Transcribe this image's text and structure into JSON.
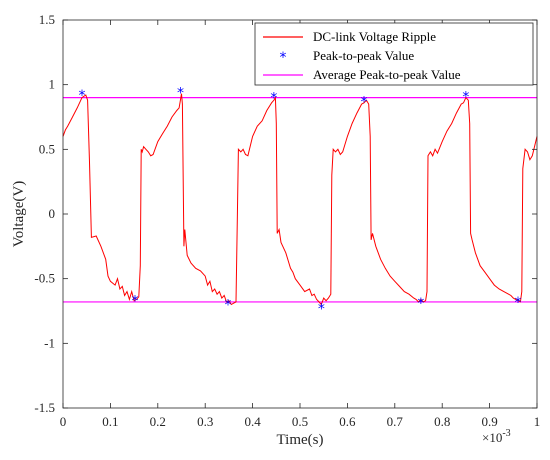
{
  "chart_data": {
    "type": "line",
    "xlabel": "Time(s)",
    "ylabel": "Voltage(V)",
    "x_multiplier_label": "×10",
    "x_multiplier_exp": "-3",
    "xlim": [
      0,
      1
    ],
    "ylim": [
      -1.5,
      1.5
    ],
    "xticks": [
      "0",
      "0.1",
      "0.2",
      "0.3",
      "0.4",
      "0.5",
      "0.6",
      "0.7",
      "0.8",
      "0.9",
      "1"
    ],
    "yticks": [
      "-1.5",
      "-1",
      "-0.5",
      "0",
      "0.5",
      "1",
      "1.5"
    ],
    "grid": false,
    "legend_position": "top-right",
    "series": [
      {
        "name": "DC-link Voltage Ripple",
        "color": "#ff0000",
        "kind": "line",
        "x": [
          0.0,
          0.005,
          0.01,
          0.02,
          0.03,
          0.04,
          0.048,
          0.052,
          0.056,
          0.06,
          0.07,
          0.08,
          0.09,
          0.095,
          0.1,
          0.11,
          0.115,
          0.12,
          0.125,
          0.13,
          0.135,
          0.14,
          0.145,
          0.15,
          0.155,
          0.16,
          0.163,
          0.165,
          0.167,
          0.17,
          0.175,
          0.18,
          0.185,
          0.19,
          0.2,
          0.21,
          0.22,
          0.23,
          0.24,
          0.245,
          0.25,
          0.252,
          0.255,
          0.257,
          0.262,
          0.27,
          0.28,
          0.29,
          0.3,
          0.305,
          0.31,
          0.315,
          0.32,
          0.325,
          0.33,
          0.335,
          0.34,
          0.345,
          0.35,
          0.355,
          0.36,
          0.365,
          0.368,
          0.37,
          0.375,
          0.38,
          0.385,
          0.39,
          0.4,
          0.41,
          0.42,
          0.43,
          0.44,
          0.445,
          0.448,
          0.45,
          0.452,
          0.456,
          0.46,
          0.47,
          0.48,
          0.485,
          0.49,
          0.5,
          0.51,
          0.52,
          0.525,
          0.53,
          0.535,
          0.54,
          0.545,
          0.55,
          0.555,
          0.56,
          0.565,
          0.567,
          0.57,
          0.575,
          0.58,
          0.585,
          0.59,
          0.6,
          0.61,
          0.62,
          0.63,
          0.635,
          0.64,
          0.645,
          0.648,
          0.65,
          0.653,
          0.66,
          0.67,
          0.68,
          0.69,
          0.7,
          0.71,
          0.72,
          0.73,
          0.74,
          0.745,
          0.75,
          0.755,
          0.76,
          0.765,
          0.768,
          0.77,
          0.775,
          0.78,
          0.785,
          0.79,
          0.8,
          0.81,
          0.82,
          0.83,
          0.84,
          0.845,
          0.85,
          0.855,
          0.858,
          0.86,
          0.863,
          0.87,
          0.88,
          0.89,
          0.9,
          0.91,
          0.92,
          0.93,
          0.94,
          0.945,
          0.95,
          0.955,
          0.96,
          0.965,
          0.968,
          0.97,
          0.975,
          0.98,
          0.985,
          0.99,
          1.0
        ],
        "y": [
          0.6,
          0.65,
          0.68,
          0.75,
          0.82,
          0.9,
          0.92,
          0.88,
          0.4,
          -0.18,
          -0.17,
          -0.25,
          -0.35,
          -0.48,
          -0.52,
          -0.55,
          -0.5,
          -0.58,
          -0.56,
          -0.63,
          -0.6,
          -0.66,
          -0.6,
          -0.67,
          -0.66,
          -0.64,
          -0.4,
          0.5,
          0.48,
          0.52,
          0.5,
          0.48,
          0.45,
          0.46,
          0.56,
          0.62,
          0.68,
          0.75,
          0.8,
          0.82,
          0.93,
          0.85,
          -0.25,
          -0.12,
          -0.32,
          -0.38,
          -0.42,
          -0.44,
          -0.48,
          -0.55,
          -0.52,
          -0.6,
          -0.58,
          -0.62,
          -0.6,
          -0.65,
          -0.63,
          -0.68,
          -0.67,
          -0.7,
          -0.69,
          -0.68,
          0.0,
          0.5,
          0.48,
          0.5,
          0.46,
          0.45,
          0.6,
          0.68,
          0.72,
          0.8,
          0.86,
          0.88,
          0.9,
          0.7,
          -0.15,
          -0.12,
          -0.22,
          -0.3,
          -0.42,
          -0.45,
          -0.5,
          -0.55,
          -0.6,
          -0.58,
          -0.63,
          -0.62,
          -0.66,
          -0.68,
          -0.7,
          -0.65,
          -0.67,
          -0.65,
          -0.62,
          0.3,
          0.5,
          0.48,
          0.5,
          0.46,
          0.48,
          0.6,
          0.7,
          0.78,
          0.85,
          0.86,
          0.88,
          0.85,
          0.6,
          -0.2,
          -0.15,
          -0.25,
          -0.35,
          -0.42,
          -0.48,
          -0.52,
          -0.56,
          -0.6,
          -0.62,
          -0.65,
          -0.66,
          -0.68,
          -0.66,
          -0.68,
          -0.67,
          -0.6,
          0.45,
          0.48,
          0.45,
          0.5,
          0.47,
          0.56,
          0.64,
          0.7,
          0.78,
          0.85,
          0.86,
          0.9,
          0.88,
          0.7,
          -0.15,
          -0.2,
          -0.3,
          -0.4,
          -0.45,
          -0.5,
          -0.55,
          -0.58,
          -0.6,
          -0.62,
          -0.63,
          -0.65,
          -0.66,
          -0.67,
          -0.68,
          -0.6,
          0.35,
          0.5,
          0.48,
          0.42,
          0.45,
          0.6
        ]
      },
      {
        "name": "Peak-to-peak Value",
        "color": "#0000ff",
        "kind": "marker",
        "x": [
          0.04,
          0.152,
          0.248,
          0.348,
          0.445,
          0.545,
          0.635,
          0.755,
          0.85,
          0.96
        ],
        "y": [
          0.92,
          -0.67,
          0.94,
          -0.7,
          0.9,
          -0.73,
          0.87,
          -0.69,
          0.91,
          -0.68
        ]
      },
      {
        "name": "Average Peak-to-peak Value",
        "color": "#ff00ff",
        "kind": "hlines",
        "y": [
          0.9,
          -0.68
        ]
      }
    ]
  }
}
